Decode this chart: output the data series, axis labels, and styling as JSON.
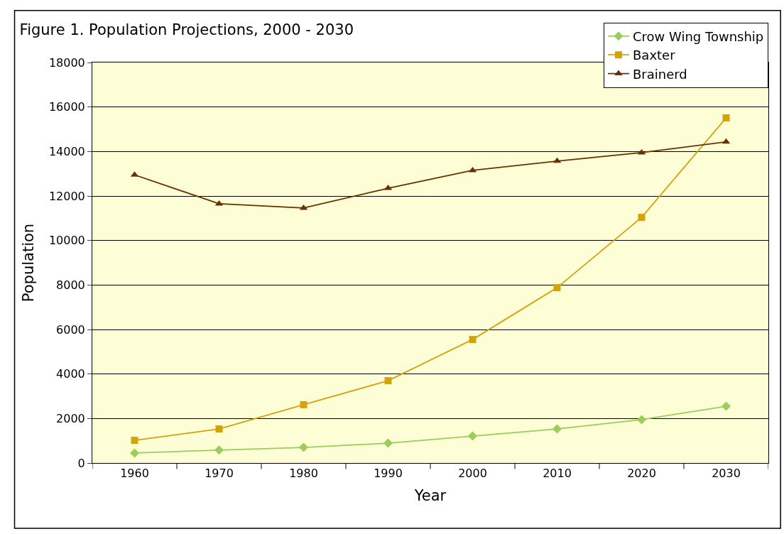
{
  "chart_data": {
    "type": "line",
    "title": "Figure 1. Population Projections, 2000 - 2030",
    "xlabel": "Year",
    "ylabel": "Population",
    "categories": [
      "1960",
      "1970",
      "1980",
      "1990",
      "2000",
      "2010",
      "2020",
      "2030"
    ],
    "series": [
      {
        "name": "Crow Wing Township",
        "color": "#9acd5a",
        "marker": "diamond",
        "values": [
          450,
          580,
          700,
          890,
          1210,
          1530,
          1950,
          2550
        ]
      },
      {
        "name": "Baxter",
        "color": "#d4a20a",
        "marker": "square",
        "values": [
          1020,
          1530,
          2620,
          3700,
          5550,
          7880,
          11040,
          15510
        ]
      },
      {
        "name": "Brainerd",
        "color": "#663300",
        "marker": "triangle",
        "values": [
          12950,
          11650,
          11460,
          12350,
          13150,
          13570,
          13950,
          14430
        ]
      }
    ],
    "ylim": [
      0,
      18000
    ],
    "yticks": [
      0,
      2000,
      4000,
      6000,
      8000,
      10000,
      12000,
      14000,
      16000,
      18000
    ],
    "grid": "y",
    "legend": "top right",
    "line_style": "solid"
  }
}
